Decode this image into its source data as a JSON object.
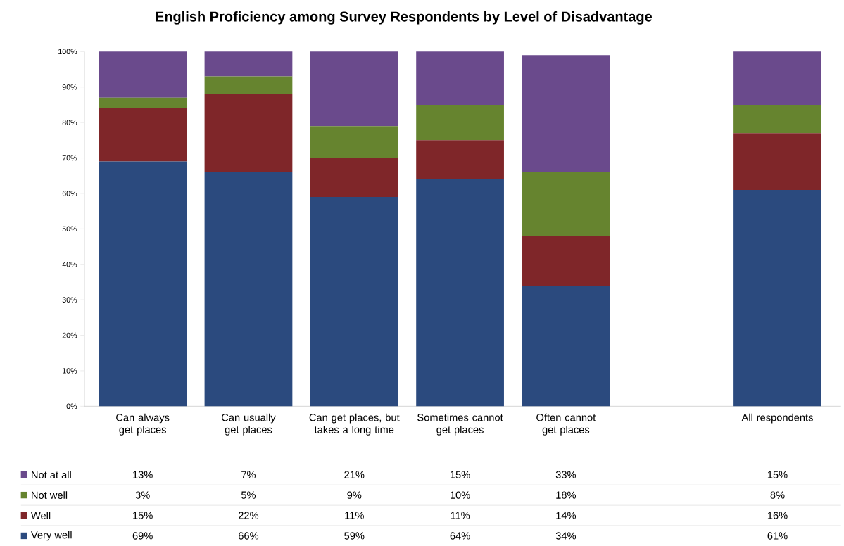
{
  "chart_data": {
    "type": "bar",
    "stacked": true,
    "title": "English Proficiency among Survey Respondents by Level of Disadvantage",
    "categories": [
      "Can always get places",
      "Can usually get places",
      "Can get places, but takes a long time",
      "Sometimes cannot get places",
      "Often cannot get places",
      null,
      "All respondents"
    ],
    "series": [
      {
        "name": "Very well",
        "color": "#2b4a7e",
        "values": [
          69,
          66,
          59,
          64,
          34,
          null,
          61
        ],
        "value_labels": [
          "69%",
          "66%",
          "59%",
          "64%",
          "34%",
          null,
          "61%"
        ]
      },
      {
        "name": "Well",
        "color": "#7f2629",
        "values": [
          15,
          22,
          11,
          11,
          14,
          null,
          16
        ],
        "value_labels": [
          "15%",
          "22%",
          "11%",
          "11%",
          "14%",
          null,
          "16%"
        ]
      },
      {
        "name": "Not well",
        "color": "#66842f",
        "values": [
          3,
          5,
          9,
          10,
          18,
          null,
          8
        ],
        "value_labels": [
          "3%",
          "5%",
          "9%",
          "10%",
          "18%",
          null,
          "8%"
        ]
      },
      {
        "name": "Not at all",
        "color": "#6a4a8c",
        "values": [
          13,
          7,
          21,
          15,
          33,
          null,
          15
        ],
        "value_labels": [
          "13%",
          "7%",
          "21%",
          "15%",
          "33%",
          null,
          "15%"
        ]
      }
    ],
    "ylim": [
      0,
      100
    ],
    "yticks": [
      {
        "value": 0,
        "label": "0%"
      },
      {
        "value": 10,
        "label": "10%"
      },
      {
        "value": 20,
        "label": "20%"
      },
      {
        "value": 30,
        "label": "30%"
      },
      {
        "value": 40,
        "label": "40%"
      },
      {
        "value": 50,
        "label": "50%"
      },
      {
        "value": 60,
        "label": "60%"
      },
      {
        "value": 70,
        "label": "70%"
      },
      {
        "value": 80,
        "label": "80%"
      },
      {
        "value": 90,
        "label": "90%"
      },
      {
        "value": 100,
        "label": "100%"
      }
    ],
    "legend": "bottom left"
  }
}
